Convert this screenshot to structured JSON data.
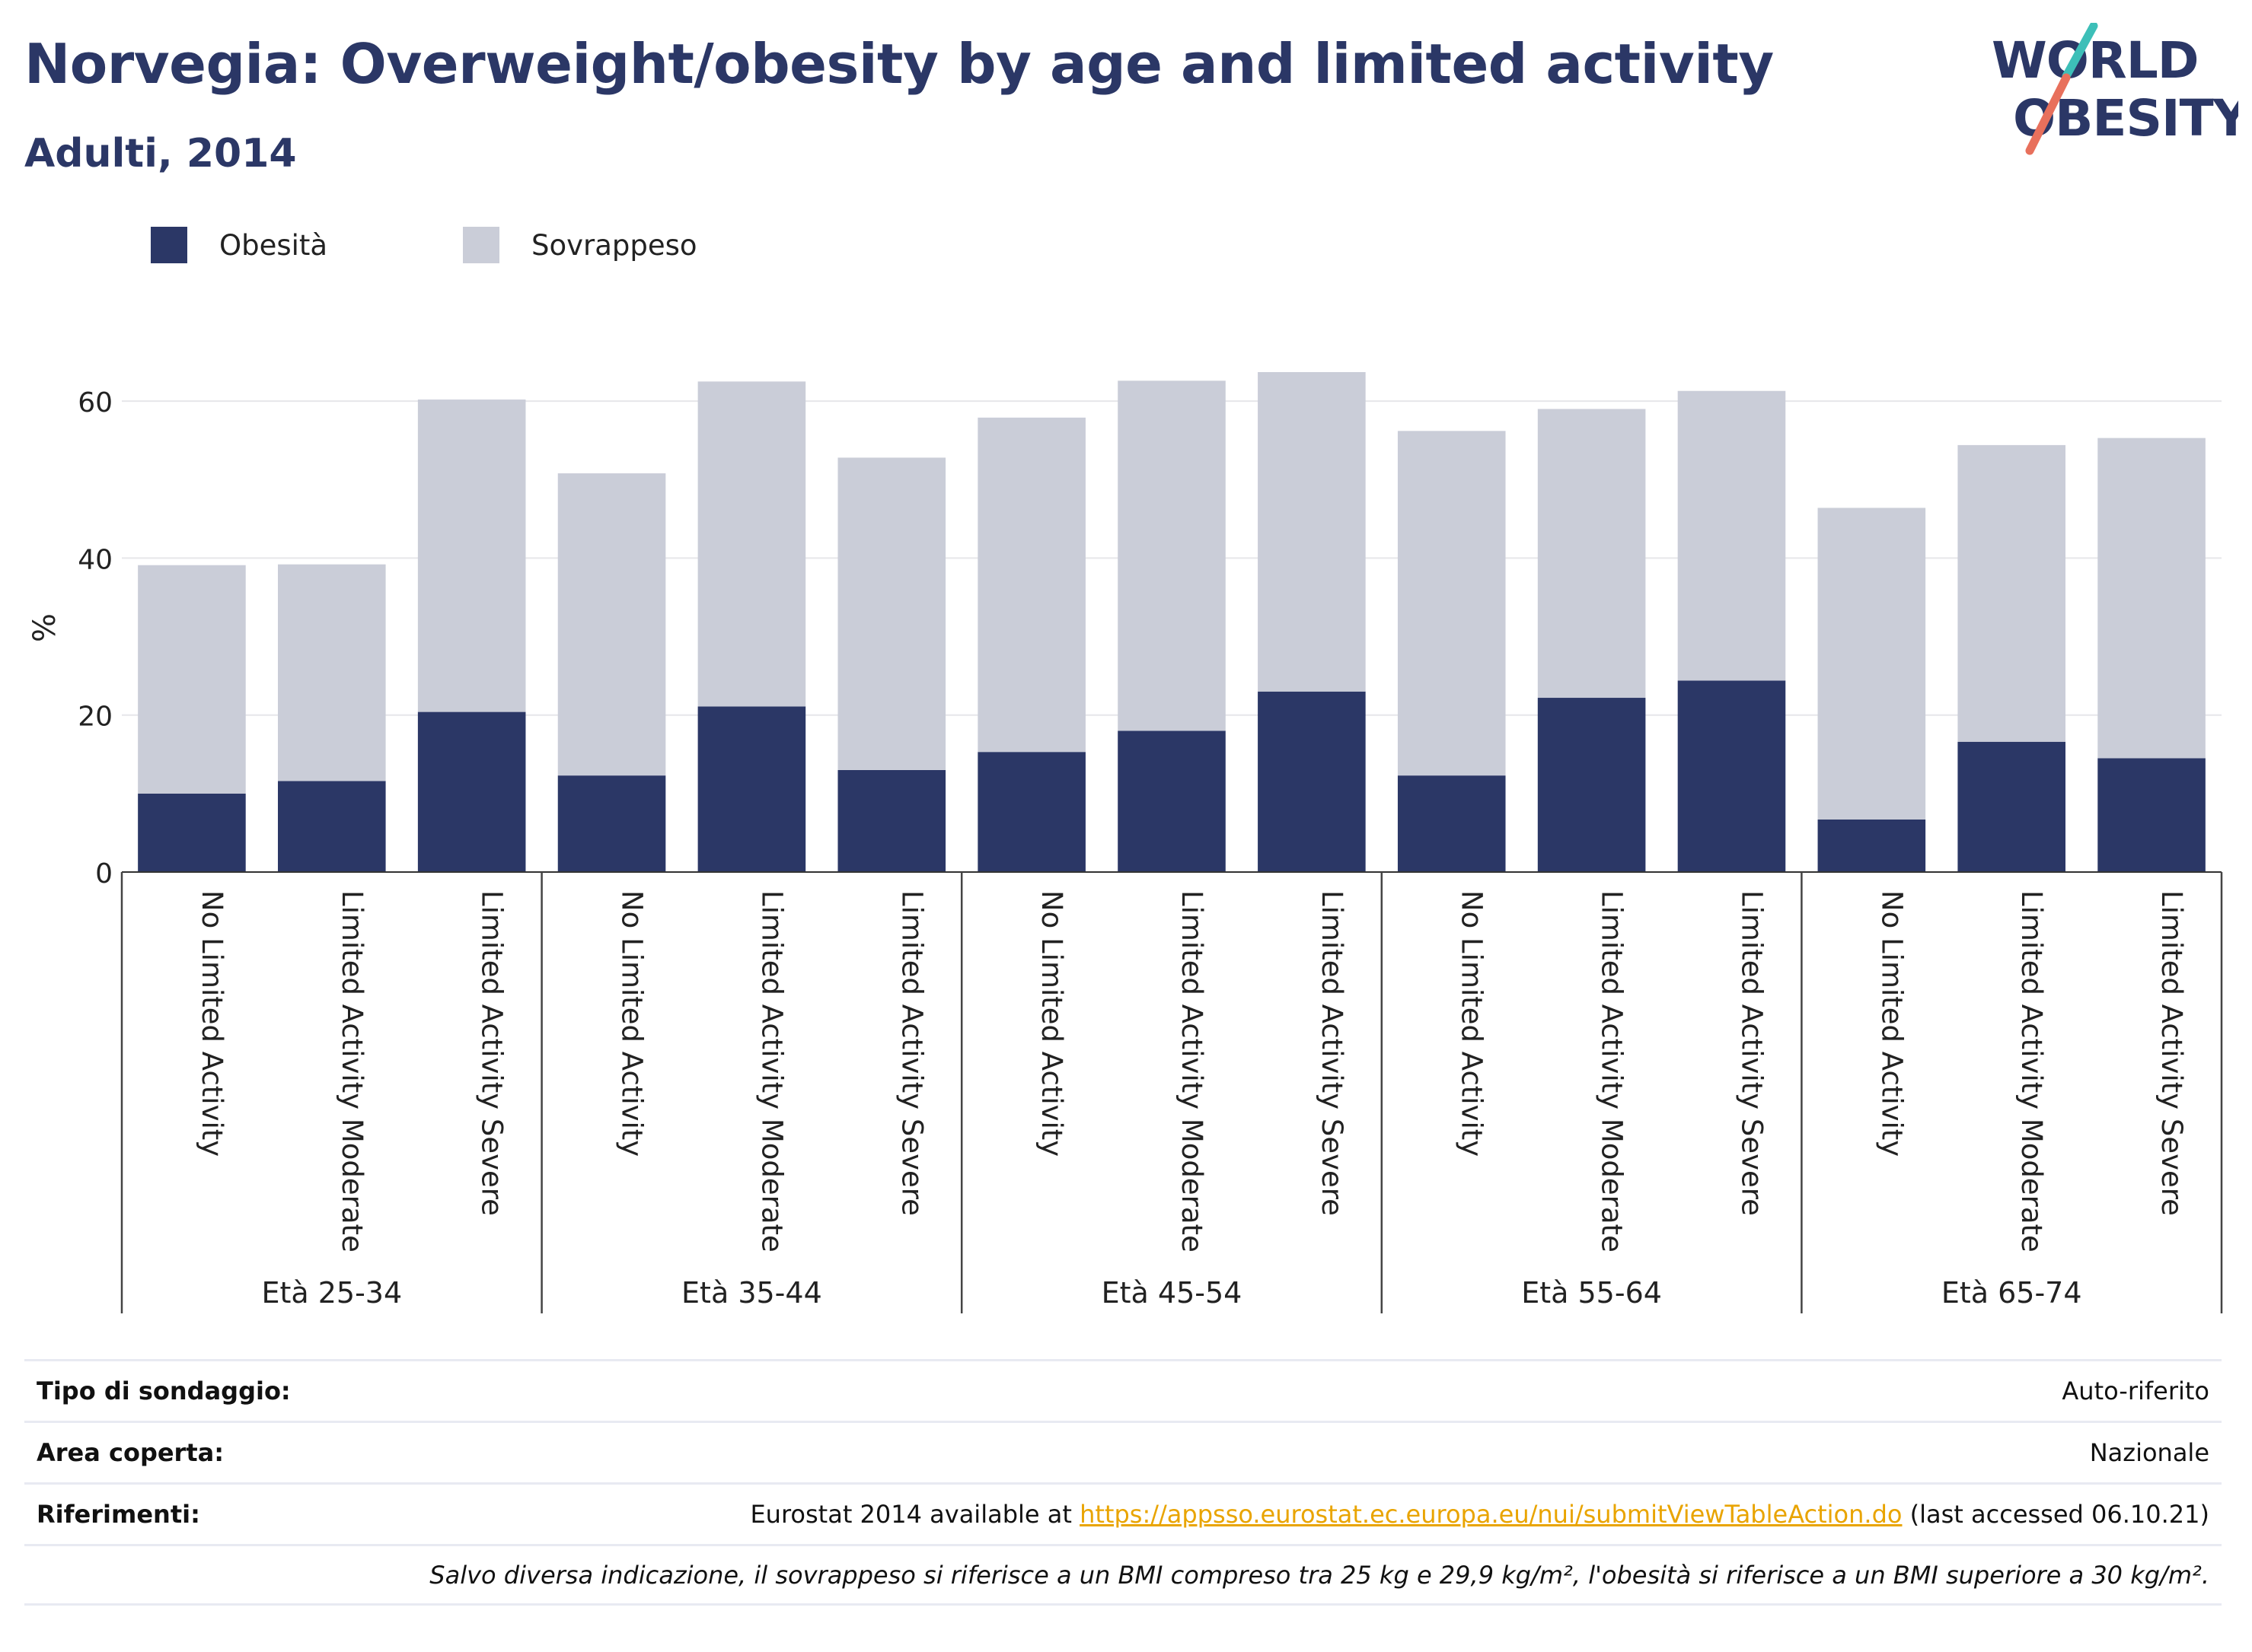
{
  "header": {
    "title": "Norvegia: Overweight/obesity by age and limited activity",
    "subtitle": "Adulti, 2014"
  },
  "logo": {
    "line1": "WORLD",
    "line2": "OBESITY",
    "colors": {
      "text": "#2b3766",
      "slash_top": "#3dbfb8",
      "slash_bottom": "#e8705c"
    }
  },
  "legend": [
    {
      "label": "Obesità",
      "color": "#2b3766"
    },
    {
      "label": "Sovrappeso",
      "color": "#cacdd8"
    }
  ],
  "chart_data": {
    "type": "bar",
    "stacked": true,
    "ylabel": "%",
    "ylim": [
      0,
      70
    ],
    "yticks": [
      0,
      20,
      40,
      60
    ],
    "grid": true,
    "legend_position": "top-left",
    "groups": [
      "Età 25-34",
      "Età 35-44",
      "Età 45-54",
      "Età 55-64",
      "Età 65-74"
    ],
    "subcategories": [
      "No Limited Activity",
      "Limited Activity Moderate",
      "Limited Activity Severe"
    ],
    "series": [
      {
        "name": "Obesità",
        "color": "#2b3766",
        "values": [
          10.0,
          11.6,
          20.4,
          12.3,
          21.1,
          13.0,
          15.3,
          18.0,
          23.0,
          12.3,
          22.2,
          24.4,
          6.7,
          16.6,
          14.5
        ]
      },
      {
        "name": "Sovrappeso",
        "color": "#cacdd8",
        "values": [
          29.1,
          27.6,
          39.8,
          38.5,
          41.4,
          39.8,
          42.6,
          44.6,
          40.7,
          43.9,
          36.8,
          36.9,
          39.7,
          37.8,
          40.8
        ]
      }
    ]
  },
  "info": [
    {
      "label": "Tipo di sondaggio:",
      "value": "Auto-riferito"
    },
    {
      "label": "Area coperta:",
      "value": "Nazionale"
    },
    {
      "label": "Riferimenti:",
      "prefix": "Eurostat 2014 available at ",
      "link": "https://appsso.eurostat.ec.europa.eu/nui/submitViewTableAction.do",
      "suffix": " (last accessed 06.10.21)"
    }
  ],
  "note": "Salvo diversa indicazione, il sovrappeso si riferisce a un BMI compreso tra 25 kg e 29,9 kg/m², l'obesità si riferisce a un BMI superiore a 30 kg/m²."
}
